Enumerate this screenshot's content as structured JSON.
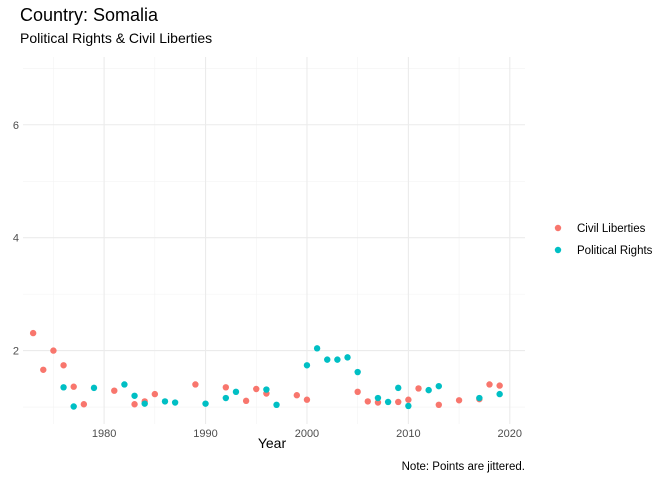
{
  "chart_data": {
    "type": "scatter",
    "title": "Country: Somalia",
    "subtitle": "Political Rights & Civil Liberties",
    "xlabel": "Year",
    "ylabel": "",
    "caption": "Note: Points are jittered.",
    "xlim": [
      1972,
      2021.5
    ],
    "ylim": [
      0.7,
      7.2
    ],
    "xticks": [
      1980,
      1990,
      2000,
      2010,
      2020
    ],
    "yticks": [
      2,
      4,
      6
    ],
    "grid": true,
    "legend_position": "right",
    "series": [
      {
        "name": "Civil Liberties",
        "color": "#F8766D",
        "points": [
          [
            1973,
            2.31
          ],
          [
            1974,
            1.66
          ],
          [
            1975,
            2.0
          ],
          [
            1976,
            1.74
          ],
          [
            1977,
            1.36
          ],
          [
            1978,
            1.05
          ],
          [
            1981,
            1.29
          ],
          [
            1983,
            1.05
          ],
          [
            1984,
            1.1
          ],
          [
            1985,
            1.23
          ],
          [
            1989,
            1.4
          ],
          [
            1992,
            1.35
          ],
          [
            1994,
            1.11
          ],
          [
            1995,
            1.32
          ],
          [
            1996,
            1.24
          ],
          [
            1999,
            1.21
          ],
          [
            2000,
            1.13
          ],
          [
            2005,
            1.27
          ],
          [
            2006,
            1.1
          ],
          [
            2007,
            1.08
          ],
          [
            2009,
            1.09
          ],
          [
            2010,
            1.13
          ],
          [
            2011,
            1.33
          ],
          [
            2013,
            1.04
          ],
          [
            2015,
            1.12
          ],
          [
            2017,
            1.14
          ],
          [
            2018,
            1.4
          ],
          [
            2019,
            1.38
          ]
        ]
      },
      {
        "name": "Political Rights",
        "color": "#00BFC4",
        "points": [
          [
            1976,
            1.35
          ],
          [
            1977,
            1.01
          ],
          [
            1979,
            1.34
          ],
          [
            1982,
            1.4
          ],
          [
            1983,
            1.2
          ],
          [
            1984,
            1.06
          ],
          [
            1986,
            1.1
          ],
          [
            1987,
            1.08
          ],
          [
            1990,
            1.06
          ],
          [
            1992,
            1.16
          ],
          [
            1993,
            1.27
          ],
          [
            1996,
            1.31
          ],
          [
            1997,
            1.04
          ],
          [
            2000,
            1.74
          ],
          [
            2001,
            2.04
          ],
          [
            2002,
            1.84
          ],
          [
            2003,
            1.84
          ],
          [
            2004,
            1.88
          ],
          [
            2005,
            1.62
          ],
          [
            2007,
            1.16
          ],
          [
            2008,
            1.09
          ],
          [
            2009,
            1.34
          ],
          [
            2010,
            1.02
          ],
          [
            2012,
            1.3
          ],
          [
            2013,
            1.37
          ],
          [
            2017,
            1.16
          ],
          [
            2019,
            1.23
          ]
        ]
      }
    ]
  }
}
